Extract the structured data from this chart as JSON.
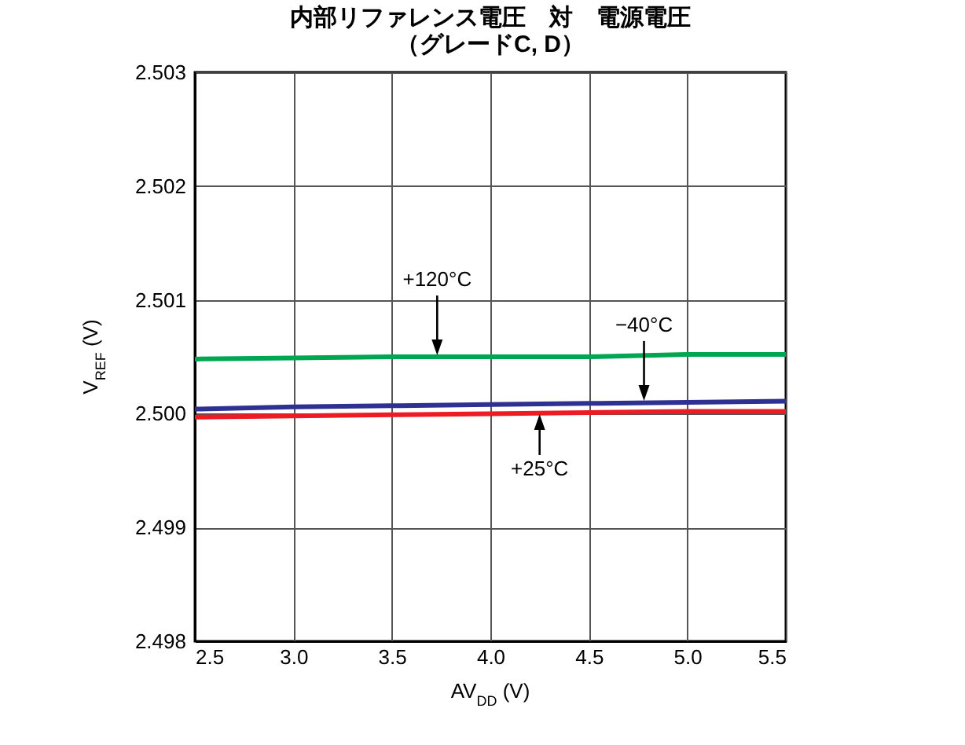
{
  "chart_data": {
    "type": "line",
    "title": "内部リファレンス電圧　対　電源電圧",
    "subtitle": "（グレードC, D）",
    "xlabel": "AV$_{DD}$ (V)",
    "ylabel": "V$_{REF}$ (V)",
    "x": [
      2.5,
      3.0,
      3.5,
      4.0,
      4.5,
      5.0,
      5.5
    ],
    "series": [
      {
        "color": "#00a651",
        "values": [
          2.50048,
          2.50049,
          2.5005,
          2.5005,
          2.5005,
          2.50052,
          2.50052
        ]
      },
      {
        "color": "#2e3192",
        "values": [
          2.50004,
          2.50006,
          2.50007,
          2.50008,
          2.50009,
          2.5001,
          2.50011
        ]
      },
      {
        "color": "#ed1c24",
        "values": [
          2.49997,
          2.49998,
          2.49999,
          2.5,
          2.50001,
          2.50002,
          2.50002
        ]
      }
    ],
    "annotations": [
      {
        "text": "+120°C",
        "x": 3.73,
        "y": 2.5005
      },
      {
        "text": "−40°C",
        "x": 4.78,
        "y": 2.5001
      },
      {
        "text": "+25°C",
        "x": 4.25,
        "y": 2.50001
      }
    ],
    "xlim": [
      2.5,
      5.5
    ],
    "xticks": [
      2.5,
      {
        "value": 3,
        "label": "3.0"
      },
      3.5,
      {
        "value": 4,
        "label": "4.0"
      },
      4.5,
      {
        "value": 5,
        "label": "5.0"
      },
      5.5
    ],
    "ylim": [
      2.498,
      2.503
    ],
    "yticks": [
      2.498,
      2.499,
      {
        "value": 2.5,
        "label": "2.500"
      },
      2.501,
      2.502,
      2.503
    ],
    "grid": true,
    "legend": false,
    "line_style": "solid",
    "marker": "none"
  }
}
